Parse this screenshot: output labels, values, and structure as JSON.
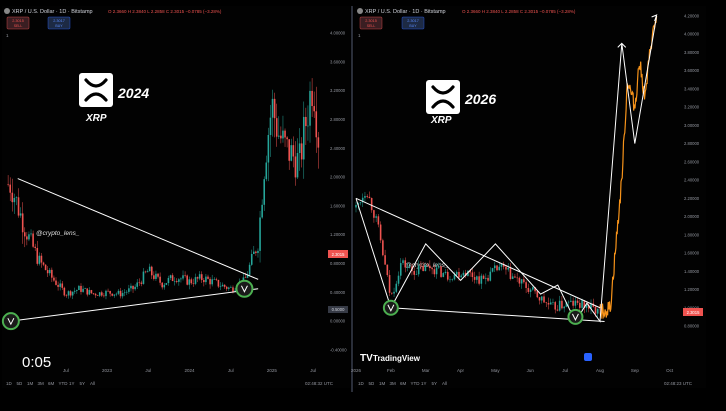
{
  "video": {
    "timestamp": "0:05"
  },
  "colors": {
    "up": "#26a69a",
    "down": "#ef5350",
    "projection": "#f7931a",
    "trendline": "#ffffff",
    "marker": "#4caf50",
    "bg": "#000000"
  },
  "panels": [
    {
      "header": "XRP / U.S. Dollar · 1D · Bitstamp",
      "ohlc": "O 2.3660  H 2.3840  L 2.2858  C 2.3015  −0.0785 (−3.28%)",
      "sell_price": "2.3015",
      "sell_label": "SELL",
      "buy_price": "2.3017",
      "buy_label": "BUY",
      "interval": "1",
      "badge_year": "2024",
      "badge_ticker": "XRP",
      "badge_icon": "xrp-logo",
      "watermark": "@crypto_lens_",
      "price_tag": "2.3015",
      "price_tag2": "0.5000",
      "date_tag": "Sep",
      "x_ticks": [
        "Jul",
        "2023",
        "Jul",
        "2024",
        "Jul",
        "2025",
        "Jul"
      ],
      "y_ticks": [
        "4.00000",
        "3.60000",
        "3.20000",
        "2.80000",
        "2.40000",
        "2.00000",
        "1.60000",
        "1.20000",
        "0.80000",
        "0.40000",
        "0.00000",
        "-0.40000"
      ],
      "footer_tf": [
        "1D",
        "5D",
        "1M",
        "3M",
        "6M",
        "YTD",
        "1Y",
        "5Y",
        "All"
      ],
      "footer_time": "02:48:32 UTC"
    },
    {
      "header": "XRP / U.S. Dollar · 1D · Bitstamp",
      "ohlc": "O 2.3660  H 2.3840  L 2.2858  C 2.3015  −0.0785 (−3.28%)",
      "sell_price": "2.3015",
      "sell_label": "SELL",
      "buy_price": "2.3017",
      "buy_label": "BUY",
      "interval": "1",
      "badge_year": "2026",
      "badge_ticker": "XRP",
      "badge_icon": "xrp-logo",
      "watermark": "@crypto_lens_",
      "price_tag": "2.3015",
      "brand": "TradingView",
      "x_ticks": [
        "2026",
        "Feb",
        "Mar",
        "Apr",
        "May",
        "Jun",
        "Jul",
        "Aug",
        "Sep",
        "Oct"
      ],
      "y_ticks": [
        "4.20000",
        "4.00000",
        "3.80000",
        "3.60000",
        "3.40000",
        "3.20000",
        "3.00000",
        "2.80000",
        "2.60000",
        "2.40000",
        "2.20000",
        "2.00000",
        "1.80000",
        "1.60000",
        "1.40000",
        "1.20000",
        "1.00000",
        "0.80000"
      ],
      "footer_tf": [
        "1D",
        "5D",
        "1M",
        "3M",
        "6M",
        "YTD",
        "1Y",
        "5Y",
        "All"
      ],
      "footer_time": "02:48:23 UTC"
    }
  ],
  "chart_data": [
    {
      "type": "candlestick",
      "title": "XRP / U.S. Dollar · 1D · Bitstamp",
      "series": [
        {
          "name": "XRP/USD",
          "x": [
            "2021-11",
            "2022-01",
            "2022-03",
            "2022-05",
            "2022-07",
            "2022-09",
            "2022-11",
            "2023-01",
            "2023-03",
            "2023-05",
            "2023-07",
            "2023-09",
            "2023-11",
            "2024-01",
            "2024-03",
            "2024-05",
            "2024-07",
            "2024-09",
            "2024-11",
            "2024-12",
            "2025-01",
            "2025-02",
            "2025-03",
            "2025-05",
            "2025-07",
            "2025-08"
          ],
          "close": [
            1.9,
            1.3,
            0.85,
            0.6,
            0.38,
            0.45,
            0.38,
            0.4,
            0.38,
            0.46,
            0.7,
            0.52,
            0.62,
            0.55,
            0.6,
            0.52,
            0.45,
            0.55,
            1.1,
            2.3,
            3.0,
            2.6,
            2.4,
            2.2,
            3.4,
            2.3
          ]
        }
      ],
      "trendlines": [
        {
          "name": "upper",
          "from": [
            "2021-12",
            1.98
          ],
          "to": [
            "2024-11",
            0.58
          ]
        },
        {
          "name": "lower",
          "from": [
            "2021-11",
            0.0
          ],
          "to": [
            "2024-11",
            0.45
          ]
        }
      ],
      "markers": [
        {
          "x": "2021-11",
          "y": 0.0
        },
        {
          "x": "2024-09",
          "y": 0.45
        }
      ],
      "ylim": [
        -0.4,
        4.0
      ],
      "y_scale": "linear",
      "grid": false
    },
    {
      "type": "line",
      "title": "XRP / U.S. Dollar · 1D · Bitstamp",
      "series": [
        {
          "name": "XRP/USD",
          "x": [
            "2026-01-01",
            "2026-01-10",
            "2026-01-20",
            "2026-02-01",
            "2026-02-10",
            "2026-02-20",
            "2026-03-05",
            "2026-03-20",
            "2026-04-05",
            "2026-04-20",
            "2026-05-05",
            "2026-05-20",
            "2026-06-05",
            "2026-06-20",
            "2026-07-05",
            "2026-07-20",
            "2026-08-01"
          ],
          "y": [
            2.1,
            2.3,
            1.9,
            1.1,
            1.5,
            1.4,
            1.45,
            1.35,
            1.4,
            1.3,
            1.45,
            1.3,
            1.15,
            1.0,
            1.05,
            1.02,
            0.95
          ]
        },
        {
          "name": "",
          "x": [
            "2026-08-01",
            "2026-08-10",
            "2026-08-20",
            "2026-08-25",
            "2026-09-01",
            "2026-09-05",
            "2026-09-10",
            "2026-09-15",
            "2026-09-20"
          ],
          "y": [
            0.95,
            1.0,
            2.4,
            3.5,
            3.2,
            3.7,
            3.3,
            3.9,
            4.2
          ]
        }
      ],
      "zigzag": [
        [
          "2026-01-01",
          2.2
        ],
        [
          "2026-02-01",
          1.0
        ],
        [
          "2026-03-01",
          1.7
        ],
        [
          "2026-04-01",
          1.3
        ],
        [
          "2026-05-01",
          1.7
        ],
        [
          "2026-06-10",
          1.15
        ],
        [
          "2026-06-25",
          1.25
        ],
        [
          "2026-07-10",
          0.85
        ],
        [
          "2026-07-20",
          1.05
        ],
        [
          "2026-08-01",
          0.85
        ],
        [
          "2026-08-20",
          3.9
        ],
        [
          "2026-09-01",
          2.8
        ],
        [
          "2026-09-20",
          4.2
        ]
      ],
      "trendlines": [
        {
          "name": "upper",
          "from": [
            "2026-01-01",
            2.2
          ],
          "to": [
            "2026-08-01",
            1.0
          ]
        },
        {
          "name": "lower",
          "from": [
            "2026-02-01",
            1.0
          ],
          "to": [
            "2026-08-05",
            0.85
          ]
        }
      ],
      "markers": [
        {
          "x": "2026-02-01",
          "y": 1.0
        },
        {
          "x": "2026-07-10",
          "y": 0.9
        }
      ],
      "ylim": [
        0.8,
        4.2
      ],
      "y_scale": "linear",
      "grid": false
    }
  ]
}
